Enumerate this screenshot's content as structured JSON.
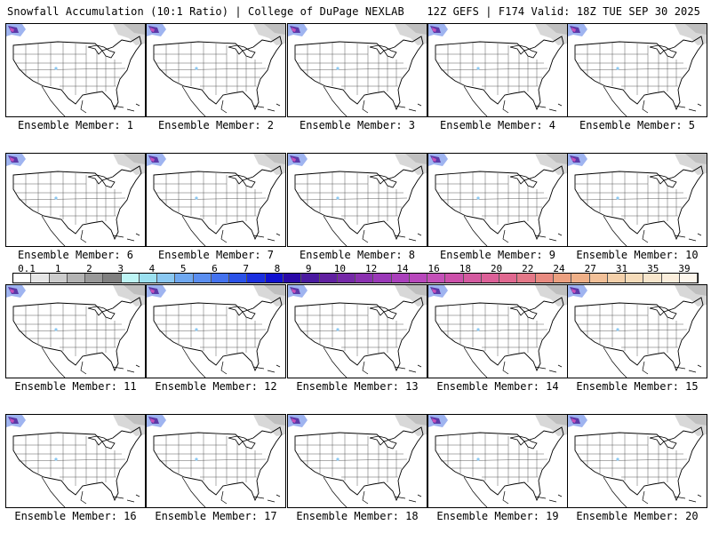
{
  "header": {
    "left": "Snowfall Accumulation (10:1 Ratio) | College of DuPage NEXLAB",
    "right": "12Z GEFS | F174 Valid: 18Z TUE SEP 30 2025"
  },
  "panels": [
    {
      "label": "Ensemble Member: 1"
    },
    {
      "label": "Ensemble Member: 2"
    },
    {
      "label": "Ensemble Member: 3"
    },
    {
      "label": "Ensemble Member: 4"
    },
    {
      "label": "Ensemble Member: 5"
    },
    {
      "label": "Ensemble Member: 6"
    },
    {
      "label": "Ensemble Member: 7"
    },
    {
      "label": "Ensemble Member: 8"
    },
    {
      "label": "Ensemble Member: 9"
    },
    {
      "label": "Ensemble Member: 10"
    },
    {
      "label": "Ensemble Member: 11"
    },
    {
      "label": "Ensemble Member: 12"
    },
    {
      "label": "Ensemble Member: 13"
    },
    {
      "label": "Ensemble Member: 14"
    },
    {
      "label": "Ensemble Member: 15"
    },
    {
      "label": "Ensemble Member: 16"
    },
    {
      "label": "Ensemble Member: 17"
    },
    {
      "label": "Ensemble Member: 18"
    },
    {
      "label": "Ensemble Member: 19"
    },
    {
      "label": "Ensemble Member: 20"
    }
  ],
  "colorbar": {
    "labels": [
      "0.1",
      "1",
      "2",
      "3",
      "4",
      "5",
      "6",
      "7",
      "8",
      "9",
      "10",
      "12",
      "14",
      "16",
      "18",
      "20",
      "22",
      "24",
      "27",
      "31",
      "35",
      "39"
    ],
    "colors": [
      "#ffffff",
      "#e6e6e6",
      "#cccccc",
      "#b3b3b3",
      "#999999",
      "#808080",
      "#bdf5f5",
      "#9be0f0",
      "#8ac8f2",
      "#6fa8f0",
      "#5a8ef0",
      "#4472ee",
      "#2a52e8",
      "#1a2fe0",
      "#1010d0",
      "#2a0aa8",
      "#4a1aa0",
      "#6020a0",
      "#7528a8",
      "#8a30b0",
      "#9a38b8",
      "#aa40bc",
      "#b848bc",
      "#c450b8",
      "#cc50aa",
      "#d45aa0",
      "#dc6098",
      "#e06890",
      "#e47888",
      "#e88a80",
      "#eca080",
      "#efb088",
      "#f2c098",
      "#f4d0aa",
      "#f6dcba",
      "#f8e6cc",
      "#fbeedc",
      "#fdf6ec"
    ]
  }
}
